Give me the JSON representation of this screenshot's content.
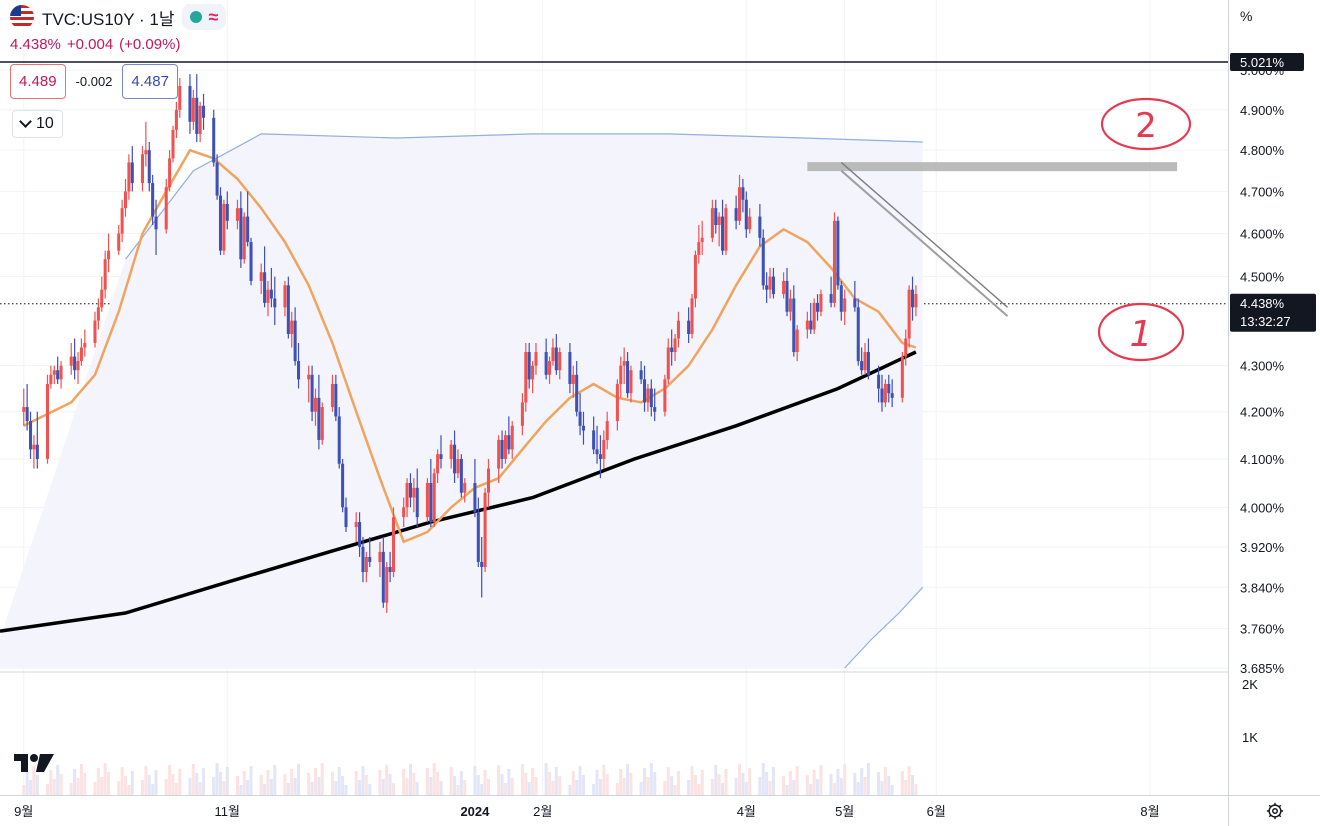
{
  "header": {
    "symbol": "TVC:US10Y · 1날",
    "last_price": "4.438%",
    "change": "+0.004",
    "change_pct": "(+0.09%)",
    "sell_price": "4.489",
    "spread": "-0.002",
    "buy_price": "4.487",
    "volume_toggle": "10"
  },
  "axis_unit_label": "%",
  "price_labels": {
    "top_line": "5.021%",
    "current": "4.438%",
    "countdown": "13:32:27"
  },
  "annotations": [
    "2",
    "1"
  ],
  "colors": {
    "up": "#ef5350",
    "down": "#3f51b5",
    "ema_short": "#f0a45d",
    "ma_long": "#000000",
    "band": "#8fb0e0",
    "band_fill": "#f4f4fc",
    "trend_gray": "#b0b0b0",
    "annotation": "#e53950"
  },
  "chart_data": {
    "type": "candlestick",
    "title": "",
    "y_unit": "%",
    "y_ticks": [
      "3.685%",
      "3.760%",
      "3.840%",
      "3.920%",
      "4.000%",
      "4.100%",
      "4.200%",
      "4.300%",
      "4.500%",
      "4.600%",
      "4.700%",
      "4.800%",
      "4.900%",
      "5.000%"
    ],
    "y_ticks_numeric": [
      3.685,
      3.76,
      3.84,
      3.92,
      4.0,
      4.1,
      4.2,
      4.3,
      4.5,
      4.6,
      4.7,
      4.8,
      4.9,
      5.0
    ],
    "volume_ticks": [
      "2K",
      "1K"
    ],
    "x_ticks": [
      "9월",
      "11월",
      "2024",
      "2월",
      "4월",
      "5월",
      "6월",
      "8월"
    ],
    "x_tick_days": [
      0,
      60,
      133,
      153,
      213,
      242,
      269,
      332
    ],
    "x_range_days": [
      -7,
      355
    ],
    "y_log_range": [
      3.685,
      5.021
    ],
    "reference_lines": [
      {
        "value": 5.021,
        "style": "solid"
      },
      {
        "value": 4.438,
        "style": "dotted"
      }
    ],
    "ohlc": [
      [
        0,
        4.2,
        4.25,
        4.17,
        4.21
      ],
      [
        1,
        4.21,
        4.26,
        4.16,
        4.18
      ],
      [
        2,
        4.18,
        4.2,
        4.1,
        4.12
      ],
      [
        3,
        4.12,
        4.15,
        4.08,
        4.13
      ],
      [
        4,
        4.13,
        4.2,
        4.08,
        4.1
      ],
      [
        7,
        4.1,
        4.28,
        4.09,
        4.26
      ],
      [
        8,
        4.26,
        4.3,
        4.25,
        4.28
      ],
      [
        9,
        4.28,
        4.3,
        4.26,
        4.29
      ],
      [
        10,
        4.29,
        4.32,
        4.26,
        4.27
      ],
      [
        11,
        4.27,
        4.31,
        4.25,
        4.3
      ],
      [
        14,
        4.3,
        4.35,
        4.28,
        4.32
      ],
      [
        15,
        4.32,
        4.36,
        4.27,
        4.29
      ],
      [
        16,
        4.29,
        4.33,
        4.26,
        4.31
      ],
      [
        17,
        4.31,
        4.36,
        4.3,
        4.34
      ],
      [
        18,
        4.34,
        4.38,
        4.32,
        4.35
      ],
      [
        21,
        4.35,
        4.42,
        4.34,
        4.4
      ],
      [
        22,
        4.4,
        4.45,
        4.38,
        4.43
      ],
      [
        23,
        4.43,
        4.5,
        4.42,
        4.47
      ],
      [
        24,
        4.47,
        4.56,
        4.45,
        4.54
      ],
      [
        25,
        4.54,
        4.6,
        4.51,
        4.56
      ],
      [
        28,
        4.56,
        4.62,
        4.55,
        4.6
      ],
      [
        29,
        4.6,
        4.68,
        4.58,
        4.66
      ],
      [
        30,
        4.66,
        4.73,
        4.64,
        4.7
      ],
      [
        31,
        4.7,
        4.79,
        4.68,
        4.77
      ],
      [
        32,
        4.77,
        4.81,
        4.7,
        4.72
      ],
      [
        35,
        4.72,
        4.81,
        4.7,
        4.79
      ],
      [
        36,
        4.79,
        4.87,
        4.76,
        4.8
      ],
      [
        37,
        4.8,
        4.82,
        4.7,
        4.72
      ],
      [
        38,
        4.72,
        4.74,
        4.62,
        4.64
      ],
      [
        39,
        4.64,
        4.68,
        4.55,
        4.61
      ],
      [
        42,
        4.61,
        4.73,
        4.6,
        4.71
      ],
      [
        43,
        4.71,
        4.8,
        4.7,
        4.78
      ],
      [
        44,
        4.78,
        4.86,
        4.77,
        4.85
      ],
      [
        45,
        4.85,
        4.92,
        4.83,
        4.9
      ],
      [
        46,
        4.9,
        4.98,
        4.88,
        4.96
      ],
      [
        49,
        4.96,
        4.99,
        4.84,
        4.87
      ],
      [
        50,
        4.87,
        4.95,
        4.85,
        4.93
      ],
      [
        51,
        4.93,
        4.99,
        4.82,
        4.84
      ],
      [
        52,
        4.84,
        4.92,
        4.82,
        4.91
      ],
      [
        53,
        4.91,
        4.94,
        4.85,
        4.88
      ],
      [
        56,
        4.88,
        4.9,
        4.76,
        4.77
      ],
      [
        57,
        4.77,
        4.79,
        4.68,
        4.69
      ],
      [
        58,
        4.69,
        4.71,
        4.55,
        4.56
      ],
      [
        59,
        4.56,
        4.68,
        4.55,
        4.67
      ],
      [
        60,
        4.67,
        4.7,
        4.61,
        4.63
      ],
      [
        63,
        4.63,
        4.68,
        4.61,
        4.66
      ],
      [
        64,
        4.66,
        4.7,
        4.52,
        4.54
      ],
      [
        65,
        4.54,
        4.65,
        4.53,
        4.64
      ],
      [
        66,
        4.64,
        4.7,
        4.57,
        4.58
      ],
      [
        67,
        4.58,
        4.59,
        4.48,
        4.49
      ],
      [
        70,
        4.49,
        4.53,
        4.46,
        4.51
      ],
      [
        71,
        4.51,
        4.57,
        4.43,
        4.44
      ],
      [
        72,
        4.44,
        4.49,
        4.41,
        4.47
      ],
      [
        73,
        4.47,
        4.52,
        4.43,
        4.45
      ],
      [
        74,
        4.45,
        4.5,
        4.39,
        4.43
      ],
      [
        77,
        4.43,
        4.49,
        4.41,
        4.48
      ],
      [
        78,
        4.48,
        4.5,
        4.36,
        4.37
      ],
      [
        79,
        4.37,
        4.42,
        4.34,
        4.4
      ],
      [
        80,
        4.4,
        4.43,
        4.3,
        4.31
      ],
      [
        81,
        4.31,
        4.35,
        4.25,
        4.27
      ],
      [
        84,
        4.27,
        4.3,
        4.22,
        4.28
      ],
      [
        85,
        4.28,
        4.3,
        4.18,
        4.2
      ],
      [
        86,
        4.2,
        4.25,
        4.17,
        4.23
      ],
      [
        87,
        4.23,
        4.28,
        4.12,
        4.14
      ],
      [
        88,
        4.14,
        4.22,
        4.13,
        4.21
      ],
      [
        91,
        4.21,
        4.28,
        4.2,
        4.26
      ],
      [
        92,
        4.26,
        4.28,
        4.18,
        4.19
      ],
      [
        93,
        4.19,
        4.21,
        4.08,
        4.09
      ],
      [
        94,
        4.09,
        4.1,
        3.99,
        4.0
      ],
      [
        95,
        4.0,
        4.02,
        3.95,
        3.96
      ],
      [
        98,
        3.96,
        3.99,
        3.93,
        3.97
      ],
      [
        99,
        3.97,
        3.99,
        3.9,
        3.92
      ],
      [
        100,
        3.92,
        3.94,
        3.85,
        3.87
      ],
      [
        101,
        3.87,
        3.91,
        3.85,
        3.9
      ],
      [
        102,
        3.9,
        3.94,
        3.88,
        3.89
      ],
      [
        105,
        3.89,
        3.93,
        3.86,
        3.91
      ],
      [
        106,
        3.91,
        3.94,
        3.8,
        3.81
      ],
      [
        107,
        3.81,
        3.89,
        3.79,
        3.88
      ],
      [
        108,
        3.88,
        3.91,
        3.85,
        3.87
      ],
      [
        109,
        3.87,
        4.0,
        3.86,
        3.98
      ],
      [
        112,
        3.98,
        4.02,
        3.96,
        4.0
      ],
      [
        113,
        4.0,
        4.06,
        3.98,
        4.05
      ],
      [
        114,
        4.05,
        4.07,
        4.0,
        4.02
      ],
      [
        115,
        4.02,
        4.06,
        3.99,
        4.04
      ],
      [
        116,
        4.04,
        4.08,
        3.96,
        3.98
      ],
      [
        119,
        3.98,
        4.06,
        3.97,
        4.05
      ],
      [
        120,
        4.05,
        4.1,
        3.96,
        3.97
      ],
      [
        121,
        3.97,
        4.08,
        3.96,
        4.07
      ],
      [
        122,
        4.07,
        4.12,
        4.05,
        4.11
      ],
      [
        123,
        4.11,
        4.15,
        4.08,
        4.1
      ],
      [
        126,
        4.1,
        4.14,
        4.08,
        4.13
      ],
      [
        127,
        4.13,
        4.16,
        4.05,
        4.07
      ],
      [
        128,
        4.07,
        4.12,
        4.06,
        4.1
      ],
      [
        129,
        4.1,
        4.11,
        4.02,
        4.03
      ],
      [
        130,
        4.03,
        4.06,
        4.01,
        4.05
      ],
      [
        133,
        4.05,
        4.1,
        3.98,
        3.99
      ],
      [
        134,
        3.99,
        4.02,
        3.88,
        3.89
      ],
      [
        135,
        3.89,
        3.94,
        3.82,
        3.88
      ],
      [
        136,
        3.88,
        4.04,
        3.87,
        4.03
      ],
      [
        137,
        4.03,
        4.1,
        4.0,
        4.08
      ],
      [
        140,
        4.08,
        4.15,
        4.05,
        4.14
      ],
      [
        141,
        4.14,
        4.16,
        4.08,
        4.1
      ],
      [
        142,
        4.1,
        4.16,
        4.09,
        4.15
      ],
      [
        143,
        4.15,
        4.19,
        4.11,
        4.12
      ],
      [
        144,
        4.12,
        4.18,
        4.1,
        4.17
      ],
      [
        147,
        4.17,
        4.24,
        4.15,
        4.22
      ],
      [
        148,
        4.22,
        4.35,
        4.2,
        4.33
      ],
      [
        149,
        4.33,
        4.35,
        4.25,
        4.27
      ],
      [
        150,
        4.27,
        4.31,
        4.24,
        4.3
      ],
      [
        151,
        4.3,
        4.35,
        4.28,
        4.33
      ],
      [
        154,
        4.33,
        4.36,
        4.27,
        4.28
      ],
      [
        155,
        4.28,
        4.32,
        4.26,
        4.31
      ],
      [
        156,
        4.31,
        4.36,
        4.3,
        4.34
      ],
      [
        157,
        4.34,
        4.37,
        4.28,
        4.29
      ],
      [
        158,
        4.29,
        4.34,
        4.27,
        4.33
      ],
      [
        161,
        4.33,
        4.35,
        4.24,
        4.26
      ],
      [
        162,
        4.26,
        4.3,
        4.23,
        4.28
      ],
      [
        163,
        4.28,
        4.31,
        4.19,
        4.2
      ],
      [
        164,
        4.2,
        4.24,
        4.15,
        4.17
      ],
      [
        165,
        4.17,
        4.2,
        4.13,
        4.16
      ],
      [
        168,
        4.16,
        4.19,
        4.11,
        4.12
      ],
      [
        169,
        4.12,
        4.17,
        4.09,
        4.11
      ],
      [
        170,
        4.11,
        4.15,
        4.06,
        4.1
      ],
      [
        171,
        4.1,
        4.16,
        4.08,
        4.14
      ],
      [
        172,
        4.14,
        4.2,
        4.12,
        4.18
      ],
      [
        175,
        4.18,
        4.27,
        4.16,
        4.26
      ],
      [
        176,
        4.26,
        4.32,
        4.23,
        4.3
      ],
      [
        177,
        4.3,
        4.34,
        4.26,
        4.31
      ],
      [
        178,
        4.31,
        4.33,
        4.23,
        4.24
      ],
      [
        179,
        4.24,
        4.3,
        4.22,
        4.29
      ],
      [
        182,
        4.29,
        4.31,
        4.26,
        4.27
      ],
      [
        183,
        4.27,
        4.3,
        4.2,
        4.22
      ],
      [
        184,
        4.22,
        4.26,
        4.2,
        4.25
      ],
      [
        185,
        4.25,
        4.27,
        4.19,
        4.21
      ],
      [
        186,
        4.21,
        4.25,
        4.18,
        4.2
      ],
      [
        189,
        4.2,
        4.28,
        4.19,
        4.27
      ],
      [
        190,
        4.27,
        4.36,
        4.26,
        4.34
      ],
      [
        191,
        4.34,
        4.38,
        4.3,
        4.33
      ],
      [
        192,
        4.33,
        4.37,
        4.31,
        4.36
      ],
      [
        193,
        4.36,
        4.42,
        4.34,
        4.4
      ],
      [
        196,
        4.4,
        4.43,
        4.35,
        4.37
      ],
      [
        197,
        4.37,
        4.46,
        4.36,
        4.45
      ],
      [
        198,
        4.45,
        4.56,
        4.43,
        4.55
      ],
      [
        199,
        4.55,
        4.62,
        4.53,
        4.58
      ],
      [
        200,
        4.58,
        4.63,
        4.55,
        4.59
      ],
      [
        203,
        4.59,
        4.68,
        4.58,
        4.66
      ],
      [
        204,
        4.66,
        4.68,
        4.6,
        4.62
      ],
      [
        205,
        4.62,
        4.65,
        4.57,
        4.64
      ],
      [
        206,
        4.64,
        4.68,
        4.55,
        4.56
      ],
      [
        207,
        4.56,
        4.67,
        4.55,
        4.66
      ],
      [
        210,
        4.66,
        4.69,
        4.61,
        4.63
      ],
      [
        211,
        4.63,
        4.74,
        4.62,
        4.71
      ],
      [
        212,
        4.71,
        4.73,
        4.65,
        4.68
      ],
      [
        213,
        4.68,
        4.7,
        4.59,
        4.61
      ],
      [
        214,
        4.61,
        4.66,
        4.6,
        4.64
      ],
      [
        217,
        4.64,
        4.67,
        4.57,
        4.59
      ],
      [
        218,
        4.59,
        4.61,
        4.47,
        4.48
      ],
      [
        219,
        4.48,
        4.51,
        4.44,
        4.47
      ],
      [
        220,
        4.47,
        4.52,
        4.45,
        4.5
      ],
      [
        221,
        4.5,
        4.52,
        4.45,
        4.46
      ],
      [
        224,
        4.46,
        4.51,
        4.45,
        4.49
      ],
      [
        225,
        4.49,
        4.52,
        4.41,
        4.42
      ],
      [
        226,
        4.42,
        4.47,
        4.4,
        4.45
      ],
      [
        227,
        4.45,
        4.48,
        4.32,
        4.33
      ],
      [
        228,
        4.33,
        4.39,
        4.31,
        4.38
      ],
      [
        231,
        4.38,
        4.42,
        4.36,
        4.4
      ],
      [
        232,
        4.4,
        4.44,
        4.37,
        4.38
      ],
      [
        233,
        4.38,
        4.45,
        4.37,
        4.44
      ],
      [
        234,
        4.44,
        4.46,
        4.4,
        4.42
      ],
      [
        235,
        4.42,
        4.47,
        4.41,
        4.46
      ],
      [
        238,
        4.46,
        4.5,
        4.43,
        4.44
      ],
      [
        239,
        4.44,
        4.65,
        4.43,
        4.63
      ],
      [
        240,
        4.63,
        4.64,
        4.47,
        4.48
      ],
      [
        241,
        4.48,
        4.49,
        4.4,
        4.42
      ],
      [
        242,
        4.42,
        4.47,
        4.39,
        4.45
      ],
      [
        245,
        4.45,
        4.49,
        4.42,
        4.43
      ],
      [
        246,
        4.43,
        4.45,
        4.3,
        4.31
      ],
      [
        247,
        4.31,
        4.34,
        4.28,
        4.29
      ],
      [
        248,
        4.29,
        4.35,
        4.28,
        4.33
      ],
      [
        249,
        4.33,
        4.36,
        4.27,
        4.28
      ],
      [
        252,
        4.28,
        4.3,
        4.22,
        4.25
      ],
      [
        253,
        4.25,
        4.28,
        4.2,
        4.22
      ],
      [
        254,
        4.22,
        4.27,
        4.21,
        4.26
      ],
      [
        255,
        4.26,
        4.28,
        4.22,
        4.24
      ],
      [
        256,
        4.24,
        4.27,
        4.21,
        4.23
      ],
      [
        259,
        4.23,
        4.33,
        4.22,
        4.32
      ],
      [
        260,
        4.32,
        4.38,
        4.3,
        4.36
      ],
      [
        261,
        4.36,
        4.48,
        4.34,
        4.47
      ],
      [
        262,
        4.47,
        4.5,
        4.4,
        4.43
      ],
      [
        263,
        4.43,
        4.48,
        4.41,
        4.46
      ]
    ],
    "ma_short_days": [
      0,
      14,
      21,
      28,
      35,
      42,
      49,
      56,
      63,
      70,
      77,
      84,
      91,
      98,
      105,
      112,
      119,
      126,
      133,
      140,
      147,
      154,
      161,
      168,
      175,
      182,
      189,
      196,
      203,
      210,
      217,
      224,
      231,
      238,
      245,
      252,
      259,
      263
    ],
    "ma_short_values": [
      4.17,
      4.22,
      4.28,
      4.42,
      4.6,
      4.7,
      4.8,
      4.78,
      4.73,
      4.66,
      4.58,
      4.48,
      4.35,
      4.2,
      4.06,
      3.93,
      3.95,
      4.0,
      4.04,
      4.06,
      4.12,
      4.18,
      4.23,
      4.26,
      4.23,
      4.22,
      4.25,
      4.3,
      4.38,
      4.48,
      4.57,
      4.61,
      4.58,
      4.52,
      4.45,
      4.42,
      4.35,
      4.34
    ],
    "ma_long_days": [
      -7,
      30,
      60,
      90,
      120,
      150,
      180,
      210,
      240,
      263
    ],
    "ma_long_values": [
      3.755,
      3.79,
      3.85,
      3.91,
      3.97,
      4.02,
      4.1,
      4.17,
      4.25,
      4.33
    ],
    "band_upper_days": [
      30,
      50,
      70,
      110,
      150,
      190,
      230,
      265
    ],
    "band_upper_values": [
      4.54,
      4.75,
      4.84,
      4.83,
      4.84,
      4.84,
      4.83,
      4.82
    ],
    "band_lower_days": [
      242,
      250,
      258,
      265
    ],
    "band_lower_values": [
      3.685,
      3.74,
      3.79,
      3.84
    ],
    "trendline_short": {
      "points": [
        [
          241,
          4.75
        ],
        [
          290,
          4.41
        ]
      ]
    },
    "trendline_long": {
      "points": [
        [
          241,
          4.77
        ],
        [
          290,
          4.43
        ]
      ]
    },
    "resistance_band": {
      "from_day": 231,
      "to_day": 340,
      "value": 4.76
    }
  }
}
